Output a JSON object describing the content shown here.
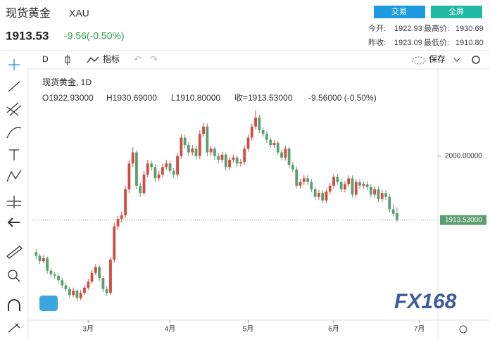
{
  "header": {
    "title": "现货黄金",
    "symbol": "XAU",
    "price": "1913.53",
    "change": "-9.56(-0.50%)",
    "buttons": [
      "交易",
      "全屏"
    ],
    "stats": [
      [
        "今开:",
        "1922.93"
      ],
      [
        "最高价:",
        "1930.69"
      ],
      [
        "昨收:",
        "1923.09"
      ],
      [
        "最低价:",
        "1910.80"
      ]
    ]
  },
  "toolbar": {
    "interval": "D",
    "indicators": "指标",
    "save": "保存"
  },
  "watermark": "FX168",
  "chart_data": {
    "type": "candlestick",
    "legend": {
      "name": "现货黄金, 1D",
      "items": [
        "O1922.93000",
        "H1930.69000",
        "L1910.80000",
        "收=1913.53000",
        "-9.56000 (-0.50%)"
      ]
    },
    "up_color": "#d24b41",
    "down_color": "#5c9e70",
    "xlim": [
      -1,
      108
    ],
    "xticks": [
      {
        "value": 14,
        "label": "3月"
      },
      {
        "value": 36,
        "label": "4月"
      },
      {
        "value": 57,
        "label": "5月"
      },
      {
        "value": 80,
        "label": "6月"
      },
      {
        "value": 103,
        "label": "7月"
      }
    ],
    "ylim": [
      1778,
      2116
    ],
    "yticks": [
      {
        "value": 2000,
        "label": "2000.00000"
      }
    ],
    "last_price": {
      "value": 1913.53,
      "label": "1913.53000"
    },
    "ohlc": [
      [
        1870,
        1874,
        1861,
        1865
      ],
      [
        1865,
        1868,
        1854,
        1858
      ],
      [
        1858,
        1866,
        1855,
        1862
      ],
      [
        1862,
        1864,
        1841,
        1845
      ],
      [
        1845,
        1848,
        1836,
        1840
      ],
      [
        1840,
        1843,
        1834,
        1838
      ],
      [
        1838,
        1841,
        1828,
        1832
      ],
      [
        1832,
        1835,
        1821,
        1825
      ],
      [
        1825,
        1829,
        1816,
        1820
      ],
      [
        1820,
        1823,
        1808,
        1812
      ],
      [
        1812,
        1822,
        1809,
        1818
      ],
      [
        1818,
        1820,
        1804,
        1808
      ],
      [
        1808,
        1819,
        1805,
        1815
      ],
      [
        1815,
        1826,
        1812,
        1822
      ],
      [
        1822,
        1834,
        1819,
        1830
      ],
      [
        1830,
        1846,
        1827,
        1842
      ],
      [
        1842,
        1854,
        1839,
        1850
      ],
      [
        1850,
        1853,
        1831,
        1835
      ],
      [
        1835,
        1838,
        1816,
        1820
      ],
      [
        1820,
        1824,
        1811,
        1815
      ],
      [
        1815,
        1864,
        1812,
        1860
      ],
      [
        1860,
        1910,
        1856,
        1905
      ],
      [
        1905,
        1919,
        1900,
        1915
      ],
      [
        1915,
        1925,
        1910,
        1920
      ],
      [
        1920,
        1960,
        1916,
        1955
      ],
      [
        1955,
        1995,
        1950,
        1990
      ],
      [
        1990,
        2012,
        1985,
        2005
      ],
      [
        2005,
        2008,
        1955,
        1960
      ],
      [
        1960,
        1964,
        1945,
        1950
      ],
      [
        1950,
        1980,
        1947,
        1975
      ],
      [
        1975,
        1995,
        1971,
        1990
      ],
      [
        1990,
        1994,
        1980,
        1985
      ],
      [
        1985,
        1989,
        1965,
        1970
      ],
      [
        1970,
        1980,
        1966,
        1975
      ],
      [
        1975,
        1990,
        1971,
        1985
      ],
      [
        1985,
        1995,
        1981,
        1990
      ],
      [
        1990,
        1994,
        1976,
        1980
      ],
      [
        1980,
        1984,
        1970,
        1975
      ],
      [
        1975,
        2004,
        1971,
        2000
      ],
      [
        2000,
        2030,
        1996,
        2025
      ],
      [
        2025,
        2029,
        2010,
        2015
      ],
      [
        2015,
        2019,
        2000,
        2005
      ],
      [
        2005,
        2015,
        2001,
        2010
      ],
      [
        2010,
        2014,
        1995,
        2000
      ],
      [
        2000,
        2035,
        1996,
        2030
      ],
      [
        2030,
        2045,
        2026,
        2040
      ],
      [
        2040,
        2044,
        2000,
        2005
      ],
      [
        2005,
        2014,
        2001,
        2010
      ],
      [
        2010,
        2013,
        1995,
        2000
      ],
      [
        2000,
        2004,
        1990,
        1995
      ],
      [
        1995,
        2006,
        1991,
        2002
      ],
      [
        2002,
        2005,
        1980,
        1985
      ],
      [
        1985,
        1999,
        1981,
        1995
      ],
      [
        1995,
        2002,
        1991,
        1998
      ],
      [
        1998,
        2001,
        1985,
        1990
      ],
      [
        1990,
        1996,
        1986,
        1992
      ],
      [
        1992,
        2014,
        1988,
        2010
      ],
      [
        2010,
        2029,
        2006,
        2025
      ],
      [
        2025,
        2044,
        2021,
        2040
      ],
      [
        2040,
        2062,
        2036,
        2052
      ],
      [
        2052,
        2056,
        2031,
        2035
      ],
      [
        2035,
        2039,
        2026,
        2030
      ],
      [
        2030,
        2034,
        2018,
        2022
      ],
      [
        2022,
        2026,
        2011,
        2015
      ],
      [
        2015,
        2022,
        2011,
        2018
      ],
      [
        2018,
        2021,
        2001,
        2005
      ],
      [
        2005,
        2009,
        1994,
        1998
      ],
      [
        1998,
        2014,
        1994,
        2010
      ],
      [
        2010,
        2013,
        1984,
        1988
      ],
      [
        1988,
        1992,
        1978,
        1982
      ],
      [
        1982,
        1986,
        1956,
        1960
      ],
      [
        1960,
        1969,
        1956,
        1965
      ],
      [
        1965,
        1974,
        1961,
        1970
      ],
      [
        1970,
        1974,
        1961,
        1965
      ],
      [
        1965,
        1969,
        1951,
        1955
      ],
      [
        1955,
        1959,
        1941,
        1945
      ],
      [
        1945,
        1954,
        1941,
        1950
      ],
      [
        1950,
        1954,
        1936,
        1940
      ],
      [
        1940,
        1956,
        1936,
        1952
      ],
      [
        1952,
        1964,
        1948,
        1960
      ],
      [
        1960,
        1976,
        1956,
        1972
      ],
      [
        1972,
        1976,
        1961,
        1965
      ],
      [
        1965,
        1969,
        1951,
        1955
      ],
      [
        1955,
        1966,
        1951,
        1962
      ],
      [
        1962,
        1974,
        1958,
        1970
      ],
      [
        1970,
        1974,
        1944,
        1948
      ],
      [
        1948,
        1969,
        1944,
        1965
      ],
      [
        1965,
        1969,
        1956,
        1960
      ],
      [
        1960,
        1966,
        1956,
        1962
      ],
      [
        1962,
        1966,
        1954,
        1958
      ],
      [
        1958,
        1962,
        1944,
        1948
      ],
      [
        1948,
        1959,
        1944,
        1955
      ],
      [
        1955,
        1959,
        1938,
        1942
      ],
      [
        1942,
        1954,
        1938,
        1950
      ],
      [
        1950,
        1954,
        1941,
        1945
      ],
      [
        1945,
        1949,
        1924,
        1928
      ],
      [
        1928,
        1935,
        1918,
        1922
      ],
      [
        1922.93,
        1930.69,
        1910.8,
        1913.53
      ]
    ]
  }
}
